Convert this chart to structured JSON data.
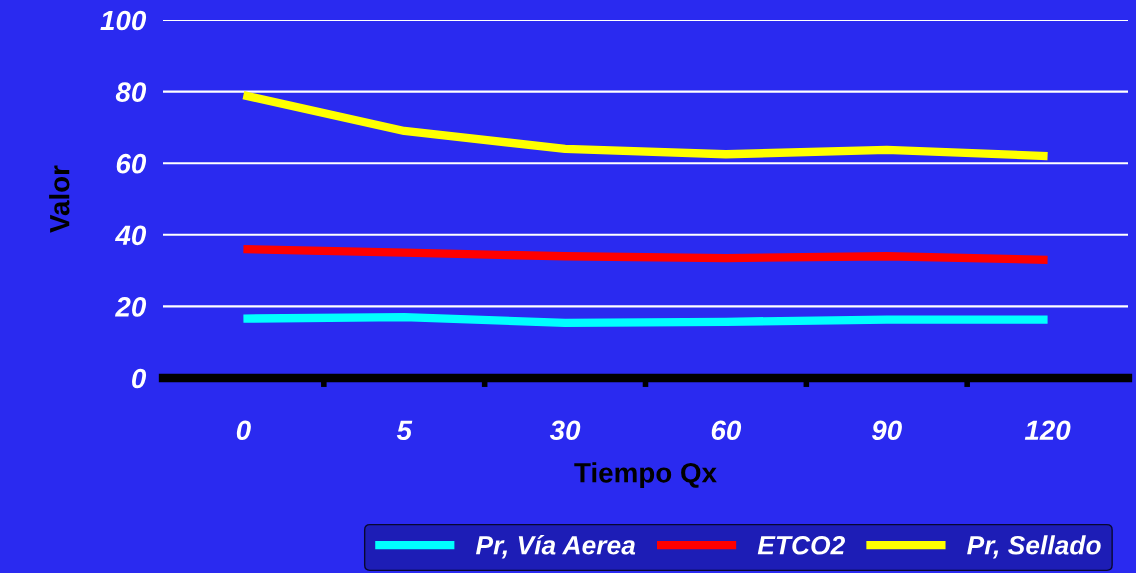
{
  "chart_data": {
    "type": "line",
    "xlabel": "Tiempo Qx",
    "ylabel": "Valor",
    "categories": [
      "0",
      "5",
      "30",
      "60",
      "90",
      "120"
    ],
    "series": [
      {
        "name": "Pr, Vía Aerea",
        "color": "#00ffff",
        "values": [
          16.6,
          17,
          15.4,
          15.7,
          16.3,
          16.3
        ]
      },
      {
        "name": "ETCO2",
        "color": "#ff0000",
        "values": [
          36,
          35,
          34,
          33.5,
          34,
          33
        ]
      },
      {
        "name": "Pr, Sellado",
        "color": "#ffff00",
        "values": [
          79,
          69,
          64,
          62.5,
          63.7,
          62
        ]
      }
    ],
    "ylim": [
      0,
      100
    ],
    "yticks": [
      0,
      20,
      40,
      60,
      80,
      100
    ],
    "grid": "y",
    "legend": "bottom",
    "marker": "none",
    "line_style": "solid"
  }
}
